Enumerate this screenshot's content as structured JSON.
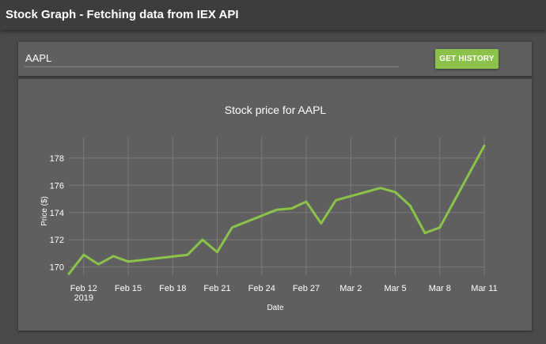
{
  "app": {
    "title": "Stock Graph - Fetching data from IEX API"
  },
  "search": {
    "value": "AAPL",
    "button_label": "GET HISTORY"
  },
  "colors": {
    "accent": "#8bc34a",
    "appbar": "#3d3d3d",
    "background": "#4a4a4a",
    "card": "#5f5f5f",
    "grid": "#7a7a7a"
  },
  "chart_data": {
    "type": "line",
    "title": "Stock price for AAPL",
    "xlabel": "Date",
    "ylabel": "Price ($)",
    "x_ticks": [
      {
        "label": "Feb 12",
        "sublabel": "2019",
        "date": "2019-02-12"
      },
      {
        "label": "Feb 15",
        "date": "2019-02-15"
      },
      {
        "label": "Feb 18",
        "date": "2019-02-18"
      },
      {
        "label": "Feb 21",
        "date": "2019-02-21"
      },
      {
        "label": "Feb 24",
        "date": "2019-02-24"
      },
      {
        "label": "Feb 27",
        "date": "2019-02-27"
      },
      {
        "label": "Mar 2",
        "date": "2019-03-02"
      },
      {
        "label": "Mar 5",
        "date": "2019-03-05"
      },
      {
        "label": "Mar 8",
        "date": "2019-03-08"
      },
      {
        "label": "Mar 11",
        "date": "2019-03-11"
      }
    ],
    "y_ticks": [
      170,
      172,
      174,
      176,
      178
    ],
    "ylim": [
      169.4,
      179.5
    ],
    "xlim": [
      "2019-02-11",
      "2019-03-11"
    ],
    "grid": true,
    "series": [
      {
        "color": "#8bc34a",
        "points": [
          {
            "x": "2019-02-11",
            "y": 169.5
          },
          {
            "x": "2019-02-12",
            "y": 170.9
          },
          {
            "x": "2019-02-13",
            "y": 170.2
          },
          {
            "x": "2019-02-14",
            "y": 170.8
          },
          {
            "x": "2019-02-15",
            "y": 170.4
          },
          {
            "x": "2019-02-19",
            "y": 170.9
          },
          {
            "x": "2019-02-20",
            "y": 172.0
          },
          {
            "x": "2019-02-21",
            "y": 171.1
          },
          {
            "x": "2019-02-22",
            "y": 172.9
          },
          {
            "x": "2019-02-25",
            "y": 174.2
          },
          {
            "x": "2019-02-26",
            "y": 174.3
          },
          {
            "x": "2019-02-27",
            "y": 174.8
          },
          {
            "x": "2019-02-28",
            "y": 173.2
          },
          {
            "x": "2019-03-01",
            "y": 174.9
          },
          {
            "x": "2019-03-04",
            "y": 175.8
          },
          {
            "x": "2019-03-05",
            "y": 175.5
          },
          {
            "x": "2019-03-06",
            "y": 174.5
          },
          {
            "x": "2019-03-07",
            "y": 172.5
          },
          {
            "x": "2019-03-08",
            "y": 172.9
          },
          {
            "x": "2019-03-11",
            "y": 178.9
          }
        ]
      }
    ]
  }
}
